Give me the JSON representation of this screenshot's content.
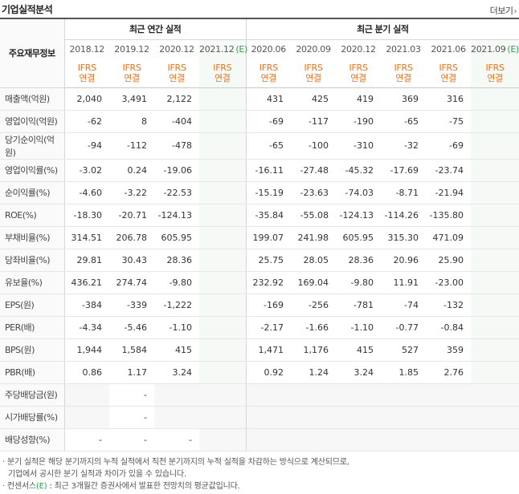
{
  "header": {
    "title": "기업실적분석",
    "more_label": "더보기",
    "more_arrow": "›"
  },
  "table": {
    "row_header_label": "주요재무정보",
    "annual_group": "최근 연간 실적",
    "quarter_group": "최근 분기 실적",
    "annual_periods": [
      "2018.12",
      "2019.12",
      "2020.12",
      "2021.12"
    ],
    "quarter_periods": [
      "2020.06",
      "2020.09",
      "2020.12",
      "2021.03",
      "2021.06",
      "2021.09"
    ],
    "estimate_marker": "(E)",
    "ifrs_line1": "IFRS",
    "ifrs_line2": "연결",
    "rows": [
      {
        "label": "매출액(억원)",
        "annual": [
          "2,040",
          "3,491",
          "2,122",
          ""
        ],
        "quarter": [
          "431",
          "425",
          "419",
          "369",
          "316",
          ""
        ]
      },
      {
        "label": "영업이익(억원)",
        "annual": [
          "-62",
          "8",
          "-404",
          ""
        ],
        "quarter": [
          "-69",
          "-117",
          "-190",
          "-65",
          "-75",
          ""
        ]
      },
      {
        "label": "당기순이익(억원)",
        "annual": [
          "-94",
          "-112",
          "-478",
          ""
        ],
        "quarter": [
          "-65",
          "-100",
          "-310",
          "-32",
          "-69",
          ""
        ]
      },
      {
        "label": "영업이익률(%)",
        "annual": [
          "-3.02",
          "0.24",
          "-19.06",
          ""
        ],
        "quarter": [
          "-16.11",
          "-27.48",
          "-45.32",
          "-17.69",
          "-23.74",
          ""
        ]
      },
      {
        "label": "순이익률(%)",
        "annual": [
          "-4.60",
          "-3.22",
          "-22.53",
          ""
        ],
        "quarter": [
          "-15.19",
          "-23.63",
          "-74.03",
          "-8.71",
          "-21.94",
          ""
        ]
      },
      {
        "label": "ROE(%)",
        "annual": [
          "-18.30",
          "-20.71",
          "-124.13",
          ""
        ],
        "quarter": [
          "-35.84",
          "-55.08",
          "-124.13",
          "-114.26",
          "-135.80",
          ""
        ]
      },
      {
        "label": "부채비율(%)",
        "annual": [
          "314.51",
          "206.78",
          "605.95",
          ""
        ],
        "quarter": [
          "199.07",
          "241.98",
          "605.95",
          "315.30",
          "471.09",
          ""
        ]
      },
      {
        "label": "당좌비율(%)",
        "annual": [
          "29.81",
          "30.43",
          "28.36",
          ""
        ],
        "quarter": [
          "25.75",
          "28.05",
          "28.36",
          "20.96",
          "25.90",
          ""
        ]
      },
      {
        "label": "유보율(%)",
        "annual": [
          "436.21",
          "274.74",
          "-9.80",
          ""
        ],
        "quarter": [
          "232.92",
          "169.04",
          "-9.80",
          "11.91",
          "-23.00",
          ""
        ]
      },
      {
        "label": "EPS(원)",
        "annual": [
          "-384",
          "-339",
          "-1,222",
          ""
        ],
        "quarter": [
          "-169",
          "-256",
          "-781",
          "-74",
          "-132",
          ""
        ]
      },
      {
        "label": "PER(배)",
        "annual": [
          "-4.34",
          "-5.46",
          "-1.10",
          ""
        ],
        "quarter": [
          "-2.17",
          "-1.66",
          "-1.10",
          "-0.77",
          "-0.84",
          ""
        ]
      },
      {
        "label": "BPS(원)",
        "annual": [
          "1,944",
          "1,584",
          "415",
          ""
        ],
        "quarter": [
          "1,471",
          "1,176",
          "415",
          "527",
          "359",
          ""
        ]
      },
      {
        "label": "PBR(배)",
        "annual": [
          "0.86",
          "1.17",
          "3.24",
          ""
        ],
        "quarter": [
          "0.92",
          "1.24",
          "3.24",
          "1.85",
          "2.76",
          ""
        ]
      },
      {
        "label": "주당배당금(원)",
        "annual": [
          "",
          "-",
          "",
          ""
        ],
        "quarter": [
          "",
          "",
          "",
          "",
          "",
          ""
        ]
      },
      {
        "label": "시가배당률(%)",
        "annual": [
          "",
          "-",
          "",
          ""
        ],
        "quarter": [
          "",
          "",
          "",
          "",
          "",
          ""
        ]
      },
      {
        "label": "배당성향(%)",
        "annual": [
          "-",
          "-",
          "-",
          ""
        ],
        "quarter": [
          "",
          "",
          "",
          "",
          "",
          ""
        ]
      }
    ]
  },
  "notes": {
    "line1": "· 분기 실적은 해당 분기까지의 누적 실적에서 직전 분기까지의 누적 실적을 차감하는 방식으로 계산되므로,",
    "line2": "기업에서 공시한 분기 실적과 차이가 있을 수 있습니다.",
    "line3_prefix": "· 컨센서스",
    "line3_marker": "(E)",
    "line3_suffix": " : 최근 3개월간 증권사에서 발표한 전망치의 평균값입니다."
  }
}
